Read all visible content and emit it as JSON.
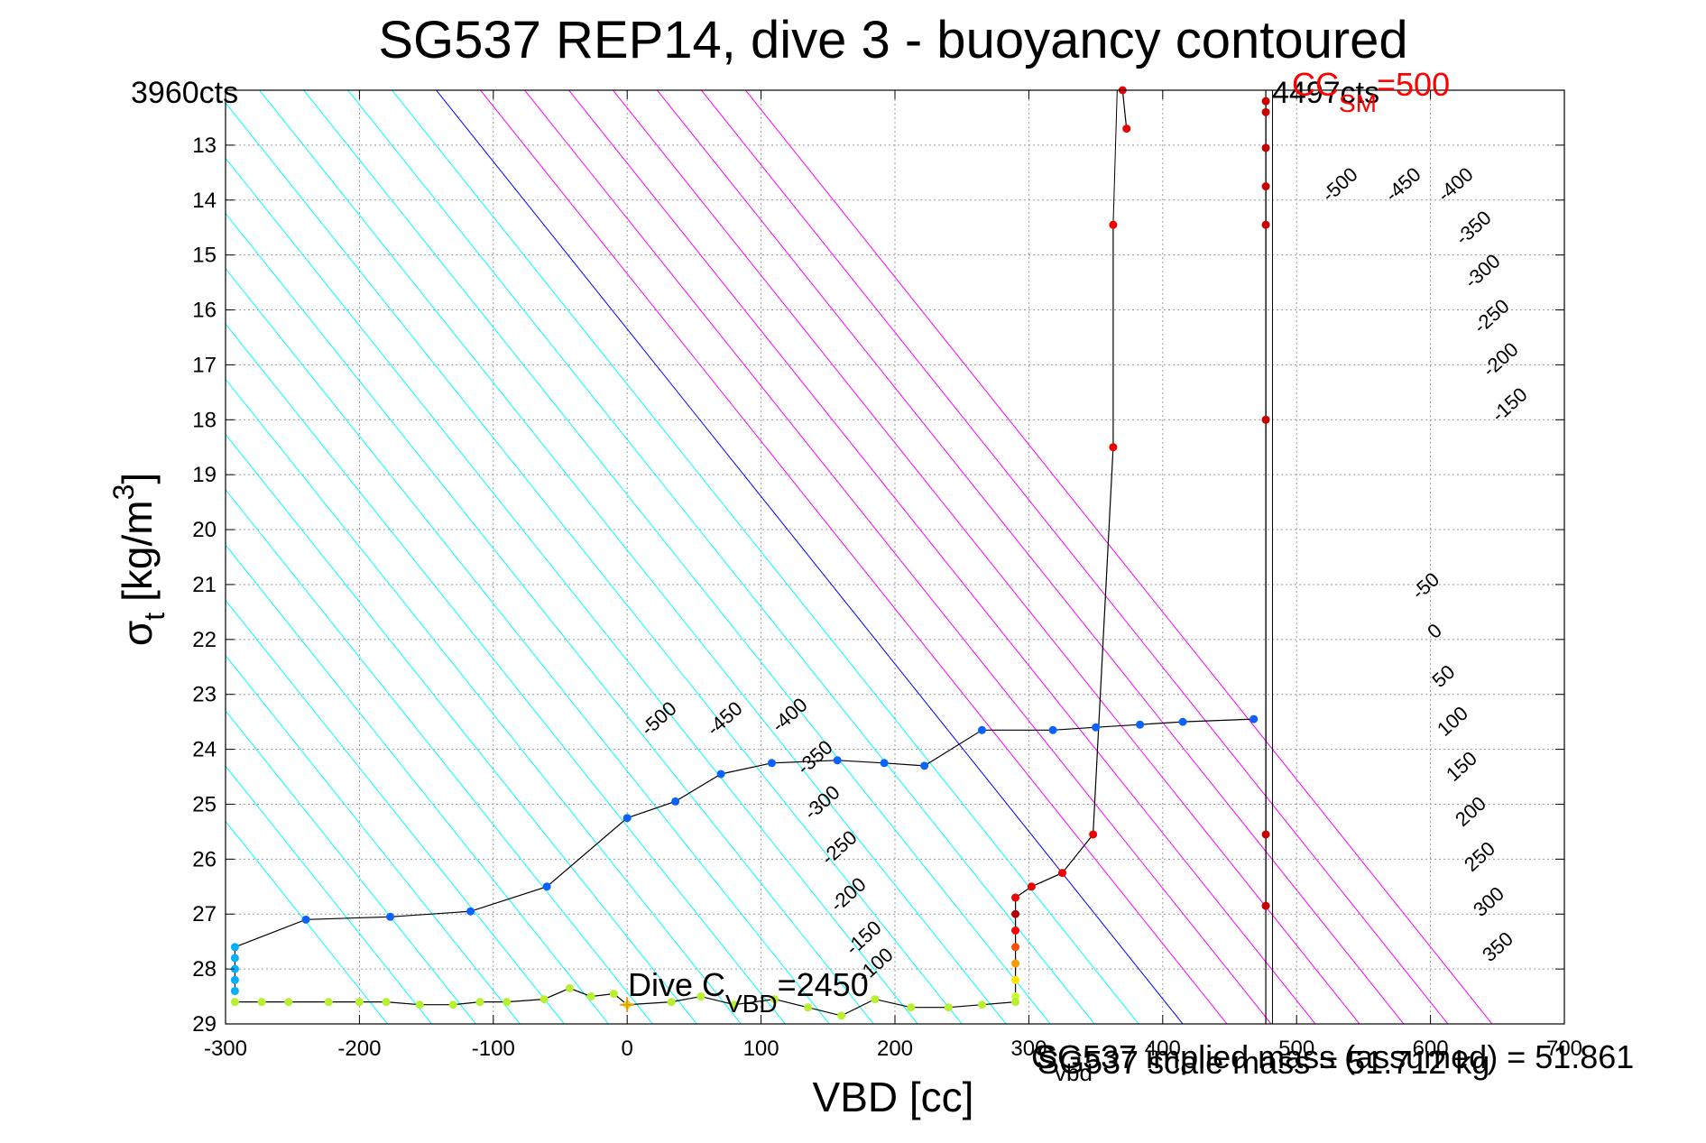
{
  "chart_data": {
    "type": "scatter",
    "title": "SG537 REP14, dive 3 - buoyancy contoured",
    "xlabel": "VBD [cc]",
    "ylabel_main": "σ",
    "ylabel_sub": "t",
    "ylabel_unit": "[kg/m",
    "ylabel_sup": "3",
    "ylabel_close": "]",
    "xlim": [
      -300,
      700
    ],
    "ylim": [
      12,
      29
    ],
    "y_reversed": true,
    "grid": true,
    "x_ticks": [
      -300,
      -200,
      -100,
      0,
      100,
      200,
      300,
      400,
      500,
      600,
      700
    ],
    "y_ticks": [
      13,
      14,
      15,
      16,
      17,
      18,
      19,
      20,
      21,
      22,
      23,
      24,
      25,
      26,
      27,
      28,
      29
    ],
    "annotations": {
      "left_counts": "3960cts",
      "right_counts": "4497cts",
      "cc_sm_main": "CC",
      "cc_sm_sub": "SM",
      "cc_sm_value": "=500",
      "dive_c_main": "Dive C",
      "dive_c_sub": "VBD",
      "dive_c_value": "=2450",
      "cvbd_main": "C",
      "cvbd_sub": "vbd",
      "bottom_right_text": "SG537 implied mass (assumed) = 51.861",
      "bottom_right_text2": "SG537 scale mass = 51.712 kg"
    },
    "contours": {
      "colors": {
        "negative": "#00ffff",
        "zero": "#0000ff",
        "positive": "#ff00ff"
      },
      "levels": [
        -500,
        -450,
        -400,
        -350,
        -300,
        -250,
        -200,
        -150,
        -100,
        -50,
        0,
        50,
        100,
        150,
        200,
        250,
        300,
        350
      ],
      "upper_labels": [
        "-500",
        "-450",
        "-400",
        "-350",
        "-300",
        "-250",
        "-200",
        "-150"
      ],
      "lower_labels": [
        "-500",
        "-450",
        "-400",
        "-350",
        "-300",
        "-250",
        "-200",
        "-150",
        "-100"
      ],
      "right_labels": [
        "-50",
        "0",
        "50",
        "100",
        "150",
        "200",
        "250",
        "300",
        "350"
      ]
    },
    "series": [
      {
        "role": "descent-upper",
        "points": [
          {
            "x": 370,
            "y": 12.0
          },
          {
            "x": 373,
            "y": 12.7
          }
        ]
      },
      {
        "role": "descent",
        "points": [
          {
            "x": 363,
            "y": 14.45
          },
          {
            "x": 363,
            "y": 18.5
          },
          {
            "x": 348,
            "y": 25.55
          },
          {
            "x": 325,
            "y": 26.25
          },
          {
            "x": 302,
            "y": 26.5
          },
          {
            "x": 290,
            "y": 26.7
          },
          {
            "x": 290,
            "y": 27.0
          },
          {
            "x": 290,
            "y": 27.3
          },
          {
            "x": 290,
            "y": 27.6
          },
          {
            "x": 290,
            "y": 27.9
          },
          {
            "x": 290,
            "y": 28.2
          },
          {
            "x": 290,
            "y": 28.5
          }
        ]
      },
      {
        "role": "bottom",
        "points": [
          {
            "x": 290,
            "y": 28.6
          },
          {
            "x": 265,
            "y": 28.65
          },
          {
            "x": 240,
            "y": 28.7
          },
          {
            "x": 212,
            "y": 28.7
          },
          {
            "x": 185,
            "y": 28.55
          },
          {
            "x": 160,
            "y": 28.85
          },
          {
            "x": 135,
            "y": 28.7
          },
          {
            "x": 110,
            "y": 28.55
          },
          {
            "x": 80,
            "y": 28.65
          },
          {
            "x": 55,
            "y": 28.5
          },
          {
            "x": 33,
            "y": 28.6
          },
          {
            "x": 0,
            "y": 28.65
          },
          {
            "x": -10,
            "y": 28.45
          },
          {
            "x": -27,
            "y": 28.5
          },
          {
            "x": -43,
            "y": 28.35
          },
          {
            "x": -62,
            "y": 28.55
          },
          {
            "x": -90,
            "y": 28.6
          },
          {
            "x": -110,
            "y": 28.6
          },
          {
            "x": -130,
            "y": 28.65
          },
          {
            "x": -155,
            "y": 28.65
          },
          {
            "x": -180,
            "y": 28.6
          },
          {
            "x": -200,
            "y": 28.6
          },
          {
            "x": -223,
            "y": 28.6
          },
          {
            "x": -253,
            "y": 28.6
          },
          {
            "x": -273,
            "y": 28.6
          },
          {
            "x": -293,
            "y": 28.6
          }
        ]
      },
      {
        "role": "ascent",
        "points": [
          {
            "x": -293,
            "y": 28.4
          },
          {
            "x": -293,
            "y": 28.2
          },
          {
            "x": -293,
            "y": 28.0
          },
          {
            "x": -293,
            "y": 27.8
          },
          {
            "x": -293,
            "y": 27.6
          },
          {
            "x": -240,
            "y": 27.1
          },
          {
            "x": -177,
            "y": 27.05
          },
          {
            "x": -117,
            "y": 26.95
          },
          {
            "x": -60,
            "y": 26.5
          },
          {
            "x": 0,
            "y": 25.25
          },
          {
            "x": 36,
            "y": 24.95
          },
          {
            "x": 70,
            "y": 24.45
          },
          {
            "x": 108,
            "y": 24.25
          },
          {
            "x": 157,
            "y": 24.2
          },
          {
            "x": 192,
            "y": 24.25
          },
          {
            "x": 222,
            "y": 24.3
          },
          {
            "x": 265,
            "y": 23.65
          },
          {
            "x": 318,
            "y": 23.65
          },
          {
            "x": 350,
            "y": 23.6
          },
          {
            "x": 383,
            "y": 23.55
          },
          {
            "x": 415,
            "y": 23.5
          },
          {
            "x": 468,
            "y": 23.45
          }
        ]
      },
      {
        "role": "vertical-line",
        "points": [
          {
            "x": 477,
            "y": 12.2
          },
          {
            "x": 477,
            "y": 12.4
          },
          {
            "x": 477,
            "y": 13.05
          },
          {
            "x": 477,
            "y": 13.75
          },
          {
            "x": 477,
            "y": 14.45
          },
          {
            "x": 477,
            "y": 18.0
          },
          {
            "x": 477,
            "y": 25.55
          },
          {
            "x": 477,
            "y": 26.85
          }
        ]
      }
    ],
    "markers": {
      "dive_c_plus": {
        "x": 0,
        "y": 28.65
      }
    }
  }
}
